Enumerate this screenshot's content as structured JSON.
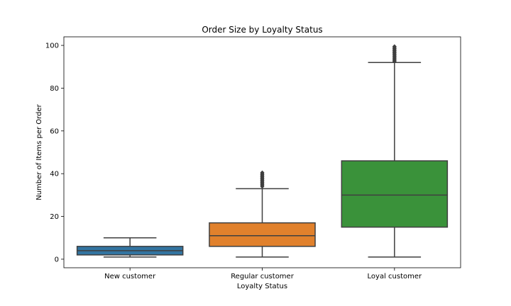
{
  "chart_data": {
    "type": "box",
    "title": "Order Size by Loyalty Status",
    "xlabel": "Loyalty Status",
    "ylabel": "Number of Items per Order",
    "ylim": [
      -4,
      104
    ],
    "yticks": [
      0,
      20,
      40,
      60,
      80,
      100
    ],
    "grid": false,
    "categories": [
      "New customer",
      "Regular customer",
      "Loyal customer"
    ],
    "colors": [
      "#3274a1",
      "#e1812c",
      "#3a923a"
    ],
    "boxes": [
      {
        "category": "New customer",
        "whisker_low": 1,
        "q1": 2,
        "median": 4,
        "q3": 6,
        "whisker_high": 10,
        "outliers": []
      },
      {
        "category": "Regular customer",
        "whisker_low": 1,
        "q1": 6,
        "median": 11,
        "q3": 17,
        "whisker_high": 33,
        "outliers": [
          34,
          34.5,
          35,
          35.5,
          36,
          36.5,
          37,
          37.5,
          38,
          38.5,
          39,
          39.5,
          40,
          40.5
        ]
      },
      {
        "category": "Loyal customer",
        "whisker_low": 1,
        "q1": 15,
        "median": 30,
        "q3": 46,
        "whisker_high": 92,
        "outliers": [
          92.5,
          93,
          93.5,
          94,
          94.5,
          95,
          95.5,
          96,
          96.5,
          97,
          97.5,
          98,
          98.5,
          99,
          99.5
        ]
      }
    ]
  }
}
